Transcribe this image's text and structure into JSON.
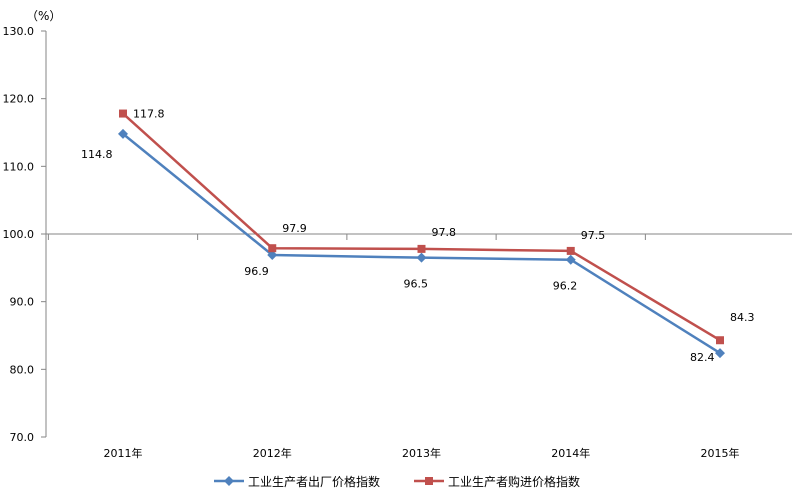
{
  "chart_data": {
    "type": "line",
    "title": "",
    "xlabel": "",
    "ylabel": "",
    "unit_label": "（%）",
    "categories": [
      "2011年",
      "2012年",
      "2013年",
      "2014年",
      "2015年"
    ],
    "ylim": [
      70.0,
      130.0
    ],
    "yticks": [
      "70.0",
      "80.0",
      "90.0",
      "100.0",
      "110.0",
      "120.0",
      "130.0"
    ],
    "reference_line": 100.0,
    "legend_position": "bottom",
    "grid": false,
    "series": [
      {
        "name": "工业生产者出厂价格指数",
        "color": "#4f81bd",
        "marker": "diamond",
        "values": [
          114.8,
          96.9,
          96.5,
          96.2,
          82.4
        ],
        "labels": [
          "114.8",
          "96.9",
          "96.5",
          "96.2",
          "82.4"
        ]
      },
      {
        "name": "工业生产者购进价格指数",
        "color": "#c0504d",
        "marker": "square",
        "values": [
          117.8,
          97.9,
          97.8,
          97.5,
          84.3
        ],
        "labels": [
          "117.8",
          "97.9",
          "97.8",
          "97.5",
          "84.3"
        ]
      }
    ]
  }
}
